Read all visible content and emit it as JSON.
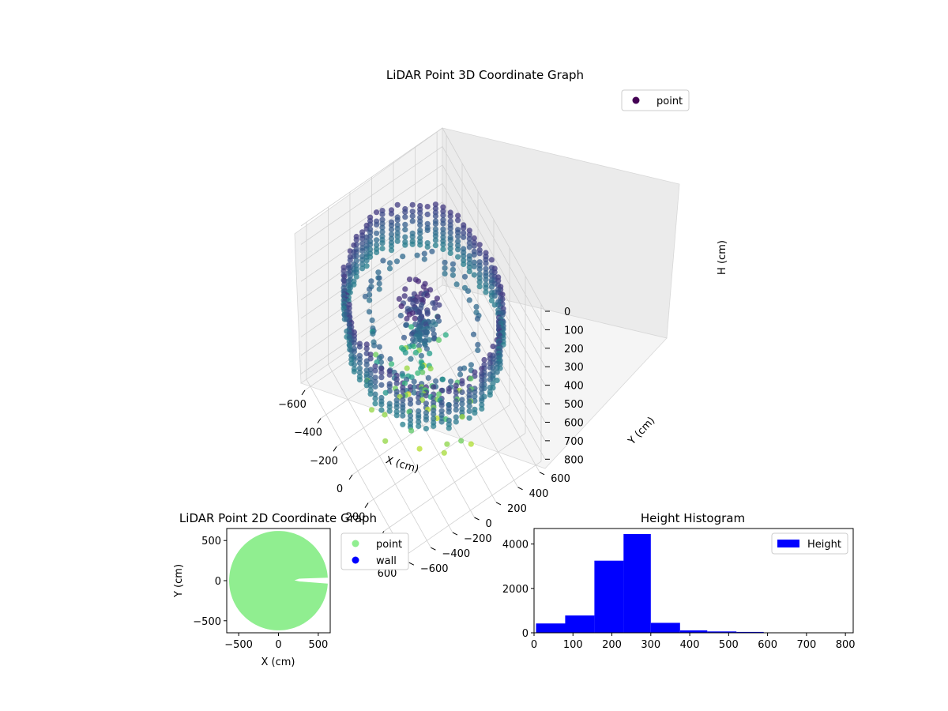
{
  "chart_data": [
    {
      "type": "scatter3d",
      "title": "LiDAR Point 3D Coordinate Graph",
      "xlabel": "X (cm)",
      "ylabel": "Y (cm)",
      "zlabel": "H (cm)",
      "xticks": [
        "−600",
        "−400",
        "−200",
        "0",
        "200",
        "400",
        "600"
      ],
      "yticks": [
        "−600",
        "−400",
        "−200",
        "0",
        "200",
        "400",
        "600"
      ],
      "zticks": [
        "0",
        "100",
        "200",
        "300",
        "400",
        "500",
        "600",
        "700",
        "800"
      ],
      "xlim": [
        -650,
        650
      ],
      "ylim": [
        -650,
        650
      ],
      "zlim": [
        0,
        850
      ],
      "z_inverted": true,
      "colormap": "viridis",
      "legend": {
        "entries": [
          "point"
        ],
        "placement": "upper-right"
      },
      "series": [
        {
          "name": "point",
          "description_of_shape": "ring of points around the origin, radius ~550-600 cm, heights mostly 150-350 cm; inner pile near center at heights 100-300 cm; sparse low points 400-800 cm near center"
        }
      ]
    },
    {
      "type": "scatter",
      "title": "LiDAR Point 2D Coordinate Graph",
      "xlabel": "X (cm)",
      "ylabel": "Y (cm)",
      "xticks": [
        "−500",
        "0",
        "500"
      ],
      "yticks": [
        "−500",
        "0",
        "500"
      ],
      "xlim": [
        -650,
        650
      ],
      "ylim": [
        -650,
        650
      ],
      "legend": {
        "entries": [
          "point",
          "wall"
        ],
        "placement": "outside-right"
      },
      "series": [
        {
          "name": "point",
          "color": "#90ee90",
          "shape": "filled disk radius ~600 cm with a narrow wedge gap toward +X"
        },
        {
          "name": "wall",
          "color": "#0000ff"
        }
      ]
    },
    {
      "type": "bar",
      "title": "Height Histogram",
      "xlabel": "",
      "ylabel": "",
      "xticks": [
        "0",
        "100",
        "200",
        "300",
        "400",
        "500",
        "600",
        "700",
        "800"
      ],
      "yticks": [
        "0",
        "2000",
        "4000"
      ],
      "xlim": [
        0,
        820
      ],
      "ylim": [
        0,
        4700
      ],
      "bar_color": "#0000ff",
      "legend": {
        "entries": [
          "Height"
        ],
        "placement": "upper-right"
      },
      "bins": [
        {
          "x0": 5,
          "x1": 80,
          "count": 420
        },
        {
          "x0": 80,
          "x1": 155,
          "count": 780
        },
        {
          "x0": 155,
          "x1": 230,
          "count": 3250
        },
        {
          "x0": 230,
          "x1": 300,
          "count": 4450
        },
        {
          "x0": 300,
          "x1": 375,
          "count": 450
        },
        {
          "x0": 375,
          "x1": 445,
          "count": 110
        },
        {
          "x0": 445,
          "x1": 520,
          "count": 60
        },
        {
          "x0": 520,
          "x1": 590,
          "count": 40
        },
        {
          "x0": 590,
          "x1": 665,
          "count": 8
        },
        {
          "x0": 665,
          "x1": 740,
          "count": 3
        },
        {
          "x0": 740,
          "x1": 800,
          "count": 2
        }
      ]
    }
  ]
}
